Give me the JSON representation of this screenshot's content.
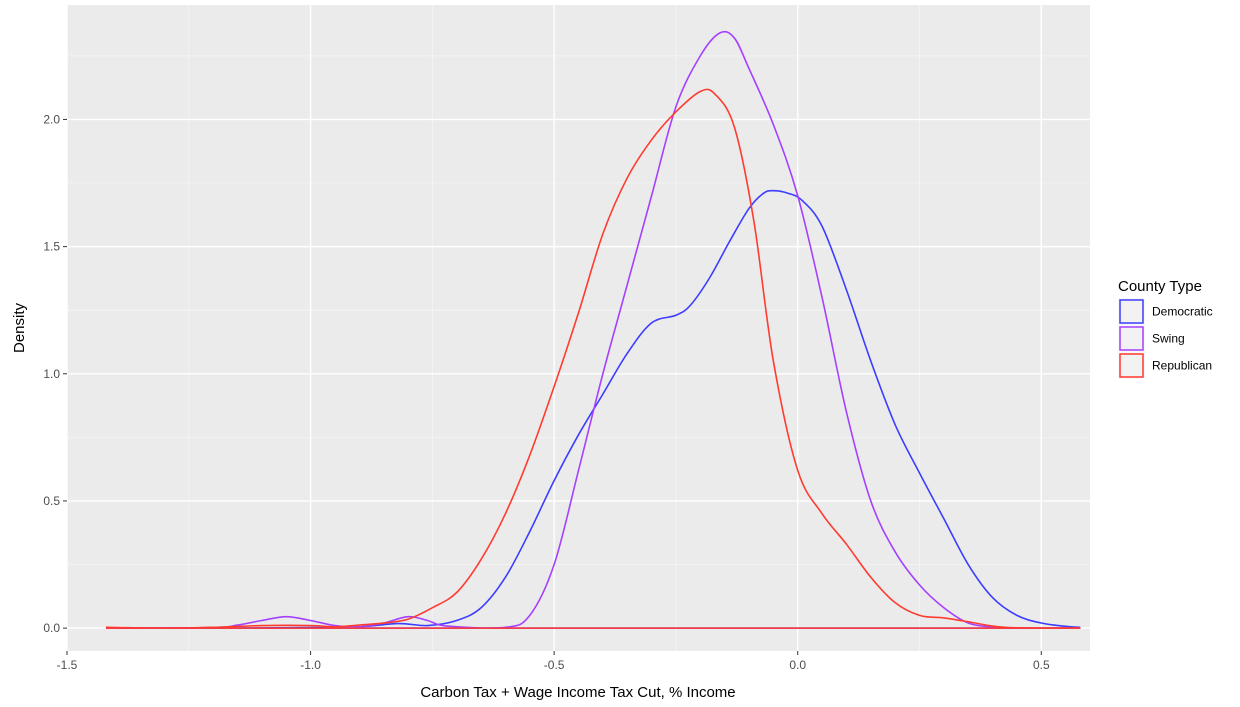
{
  "chart_data": {
    "type": "line",
    "title": "",
    "xlabel": "Carbon Tax + Wage Income Tax Cut, % Income",
    "ylabel": "Density",
    "xlim": [
      -1.5,
      0.6
    ],
    "ylim": [
      -0.09,
      2.45
    ],
    "x_ticks": [
      -1.5,
      -1.0,
      -0.5,
      0.0,
      0.5
    ],
    "x_tick_labels": [
      "-1.5",
      "-1.0",
      "-0.5",
      "0.0",
      "0.5"
    ],
    "y_ticks": [
      0.0,
      0.5,
      1.0,
      1.5,
      2.0
    ],
    "y_tick_labels": [
      "0.0",
      "0.5",
      "1.0",
      "1.5",
      "2.0"
    ],
    "grid": true,
    "legend": {
      "title": "County Type",
      "position": "right"
    },
    "series": [
      {
        "name": "Democratic",
        "color": "#3d3dff",
        "points": [
          [
            -1.42,
            0.0
          ],
          [
            -1.2,
            0.0
          ],
          [
            -1.0,
            0.002
          ],
          [
            -0.9,
            0.005
          ],
          [
            -0.82,
            0.018
          ],
          [
            -0.76,
            0.01
          ],
          [
            -0.7,
            0.03
          ],
          [
            -0.65,
            0.08
          ],
          [
            -0.6,
            0.2
          ],
          [
            -0.55,
            0.38
          ],
          [
            -0.5,
            0.58
          ],
          [
            -0.45,
            0.76
          ],
          [
            -0.4,
            0.92
          ],
          [
            -0.35,
            1.08
          ],
          [
            -0.3,
            1.2
          ],
          [
            -0.25,
            1.23
          ],
          [
            -0.22,
            1.27
          ],
          [
            -0.18,
            1.38
          ],
          [
            -0.14,
            1.52
          ],
          [
            -0.1,
            1.65
          ],
          [
            -0.07,
            1.71
          ],
          [
            -0.05,
            1.72
          ],
          [
            -0.02,
            1.71
          ],
          [
            0.01,
            1.68
          ],
          [
            0.05,
            1.58
          ],
          [
            0.1,
            1.33
          ],
          [
            0.15,
            1.05
          ],
          [
            0.2,
            0.8
          ],
          [
            0.25,
            0.61
          ],
          [
            0.3,
            0.43
          ],
          [
            0.35,
            0.25
          ],
          [
            0.4,
            0.12
          ],
          [
            0.45,
            0.05
          ],
          [
            0.5,
            0.02
          ],
          [
            0.55,
            0.007
          ],
          [
            0.58,
            0.003
          ]
        ]
      },
      {
        "name": "Swing",
        "color": "#a640ff",
        "points": [
          [
            -1.42,
            0.0
          ],
          [
            -1.2,
            0.002
          ],
          [
            -1.15,
            0.012
          ],
          [
            -1.1,
            0.03
          ],
          [
            -1.05,
            0.045
          ],
          [
            -1.0,
            0.03
          ],
          [
            -0.95,
            0.01
          ],
          [
            -0.9,
            0.005
          ],
          [
            -0.85,
            0.02
          ],
          [
            -0.8,
            0.045
          ],
          [
            -0.76,
            0.03
          ],
          [
            -0.72,
            0.008
          ],
          [
            -0.6,
            0.003
          ],
          [
            -0.55,
            0.05
          ],
          [
            -0.5,
            0.25
          ],
          [
            -0.45,
            0.62
          ],
          [
            -0.4,
            1.0
          ],
          [
            -0.35,
            1.35
          ],
          [
            -0.3,
            1.7
          ],
          [
            -0.25,
            2.05
          ],
          [
            -0.2,
            2.25
          ],
          [
            -0.16,
            2.34
          ],
          [
            -0.13,
            2.32
          ],
          [
            -0.1,
            2.2
          ],
          [
            -0.05,
            1.98
          ],
          [
            0.0,
            1.7
          ],
          [
            0.05,
            1.3
          ],
          [
            0.1,
            0.85
          ],
          [
            0.15,
            0.5
          ],
          [
            0.2,
            0.3
          ],
          [
            0.25,
            0.17
          ],
          [
            0.3,
            0.08
          ],
          [
            0.35,
            0.02
          ],
          [
            0.4,
            0.004
          ],
          [
            0.45,
            0.0
          ],
          [
            0.58,
            0.0
          ]
        ]
      },
      {
        "name": "Republican",
        "color": "#ff3b30",
        "points": [
          [
            -1.42,
            0.003
          ],
          [
            -1.3,
            0.0
          ],
          [
            -1.2,
            0.003
          ],
          [
            -1.1,
            0.01
          ],
          [
            -1.0,
            0.01
          ],
          [
            -0.95,
            0.005
          ],
          [
            -0.9,
            0.012
          ],
          [
            -0.85,
            0.02
          ],
          [
            -0.8,
            0.035
          ],
          [
            -0.75,
            0.08
          ],
          [
            -0.7,
            0.14
          ],
          [
            -0.65,
            0.27
          ],
          [
            -0.6,
            0.45
          ],
          [
            -0.55,
            0.68
          ],
          [
            -0.5,
            0.95
          ],
          [
            -0.45,
            1.24
          ],
          [
            -0.4,
            1.55
          ],
          [
            -0.35,
            1.77
          ],
          [
            -0.3,
            1.92
          ],
          [
            -0.25,
            2.03
          ],
          [
            -0.2,
            2.11
          ],
          [
            -0.17,
            2.1
          ],
          [
            -0.13,
            1.97
          ],
          [
            -0.09,
            1.6
          ],
          [
            -0.05,
            1.05
          ],
          [
            0.0,
            0.62
          ],
          [
            0.05,
            0.45
          ],
          [
            0.1,
            0.33
          ],
          [
            0.15,
            0.2
          ],
          [
            0.2,
            0.1
          ],
          [
            0.25,
            0.05
          ],
          [
            0.3,
            0.04
          ],
          [
            0.35,
            0.025
          ],
          [
            0.4,
            0.008
          ],
          [
            0.45,
            0.001
          ],
          [
            0.58,
            0.0
          ]
        ]
      }
    ]
  }
}
